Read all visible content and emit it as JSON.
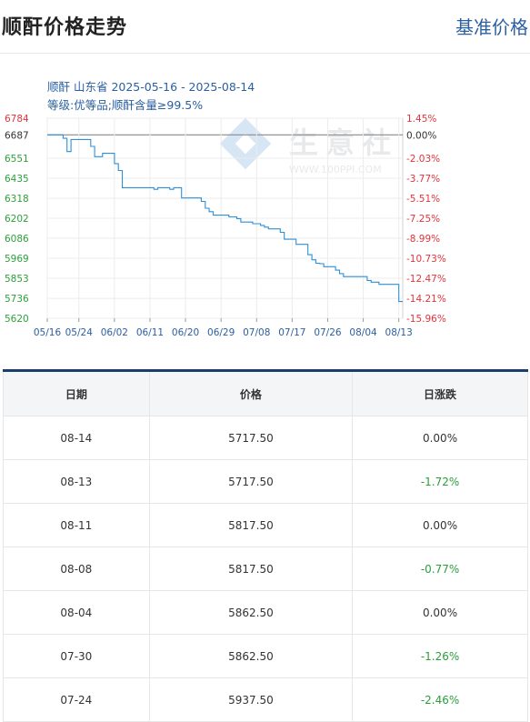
{
  "header": {
    "title": "顺酐价格走势",
    "link": "基准价格"
  },
  "chart_data": {
    "type": "line",
    "title": "顺酐 山东省 2025-05-16 - 2025-08-14",
    "subtitle": "等级:优等品;顺酐含量≥99.5%",
    "watermark": "生意社",
    "watermark_url": "WWW.100PPI.COM",
    "base_value": 6687,
    "ylim": [
      5620,
      6784
    ],
    "y_ticks_left": [
      "6784",
      "6687",
      "6551",
      "6435",
      "6318",
      "6202",
      "6086",
      "5969",
      "5853",
      "5736",
      "5620"
    ],
    "y_ticks_right": [
      "1.45%",
      "0.00%",
      "-2.03%",
      "-3.77%",
      "-5.51%",
      "-7.25%",
      "-8.99%",
      "-10.73%",
      "-12.47%",
      "-14.21%",
      "-15.96%"
    ],
    "x_ticks": [
      "05/16",
      "05/24",
      "06/02",
      "06/11",
      "06/20",
      "06/29",
      "07/08",
      "07/17",
      "07/26",
      "08/04",
      "08/13"
    ],
    "x": [
      "05-16",
      "05-19",
      "05-20",
      "05-21",
      "05-22",
      "05-23",
      "05-26",
      "05-27",
      "05-28",
      "05-29",
      "05-30",
      "06-02",
      "06-03",
      "06-04",
      "06-05",
      "06-06",
      "06-09",
      "06-10",
      "06-11",
      "06-12",
      "06-13",
      "06-16",
      "06-17",
      "06-18",
      "06-19",
      "06-20",
      "06-23",
      "06-24",
      "06-25",
      "06-26",
      "06-27",
      "06-30",
      "07-01",
      "07-02",
      "07-03",
      "07-04",
      "07-07",
      "07-08",
      "07-09",
      "07-10",
      "07-11",
      "07-14",
      "07-15",
      "07-16",
      "07-17",
      "07-18",
      "07-21",
      "07-22",
      "07-23",
      "07-24",
      "07-25",
      "07-28",
      "07-29",
      "07-30",
      "07-31",
      "08-01",
      "08-04",
      "08-05",
      "08-06",
      "08-07",
      "08-08",
      "08-11",
      "08-12",
      "08-13",
      "08-14"
    ],
    "values": [
      6687,
      6687,
      6667,
      6590,
      6660,
      6660,
      6660,
      6620,
      6560,
      6560,
      6580,
      6520,
      6480,
      6380,
      6380,
      6380,
      6380,
      6380,
      6380,
      6370,
      6380,
      6370,
      6380,
      6380,
      6320,
      6320,
      6320,
      6300,
      6260,
      6240,
      6220,
      6220,
      6210,
      6210,
      6200,
      6180,
      6170,
      6170,
      6160,
      6150,
      6140,
      6120,
      6080,
      6080,
      6080,
      6050,
      5990,
      5960,
      5940,
      5937.5,
      5920,
      5900,
      5880,
      5862.5,
      5862.5,
      5862.5,
      5862.5,
      5840,
      5830,
      5830,
      5817.5,
      5817.5,
      5817.5,
      5717.5,
      5717.5
    ],
    "colors": {
      "line": "#2e8fd8",
      "base": "#8a8a8a",
      "up": "#e0353d",
      "down": "#2c9f3a"
    }
  },
  "table": {
    "headers": [
      "日期",
      "价格",
      "日涨跌"
    ],
    "rows": [
      {
        "date": "08-14",
        "price": "5717.50",
        "change": "0.00%",
        "up": false
      },
      {
        "date": "08-13",
        "price": "5717.50",
        "change": "-1.72%",
        "up": true
      },
      {
        "date": "08-11",
        "price": "5817.50",
        "change": "0.00%",
        "up": false
      },
      {
        "date": "08-08",
        "price": "5817.50",
        "change": "-0.77%",
        "up": true
      },
      {
        "date": "08-04",
        "price": "5862.50",
        "change": "0.00%",
        "up": false
      },
      {
        "date": "07-30",
        "price": "5862.50",
        "change": "-1.26%",
        "up": true
      },
      {
        "date": "07-24",
        "price": "5937.50",
        "change": "-2.46%",
        "up": true
      }
    ]
  }
}
